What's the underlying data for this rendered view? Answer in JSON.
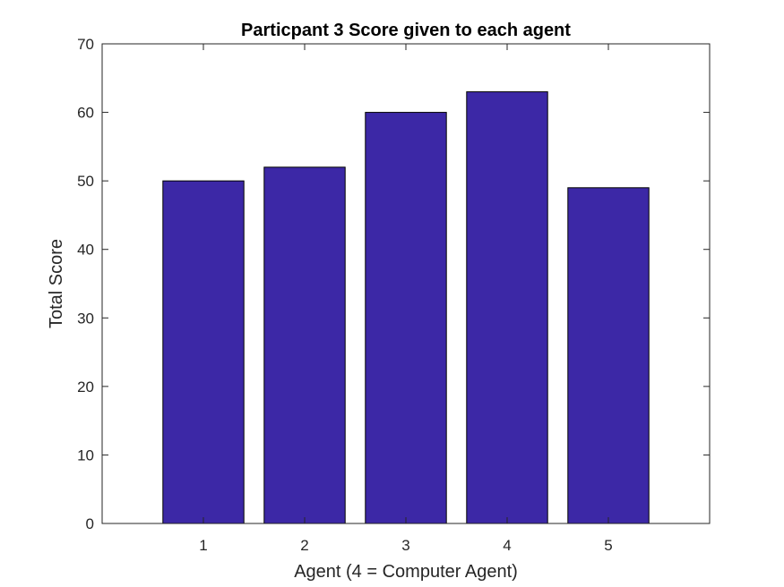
{
  "chart_data": {
    "type": "bar",
    "title": "Particpant 3 Score given to each agent",
    "xlabel": "Agent (4 = Computer Agent)",
    "ylabel": "Total Score",
    "categories": [
      "1",
      "2",
      "3",
      "4",
      "5"
    ],
    "values": [
      50,
      52,
      60,
      63,
      49
    ],
    "ylim": [
      0,
      70
    ],
    "yticks": [
      0,
      10,
      20,
      30,
      40,
      50,
      60,
      70
    ],
    "xlim": [
      0,
      6
    ],
    "grid": false,
    "bar_color": "#3c28a6"
  }
}
